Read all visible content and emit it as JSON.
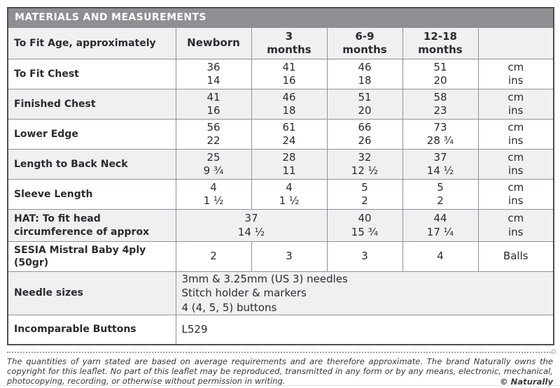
{
  "colors": {
    "title_bar_bg": "#8d8f92",
    "title_text": "#ffffff",
    "row_shade_bg": "#eff1f1",
    "outer_border": "#4d4f52",
    "grid_line": "#8f9296",
    "body_text": "#2b2b2d",
    "footer_text": "#36393c"
  },
  "title_bar": {
    "title": "MATERIALS AND MEASUREMENTS"
  },
  "table": {
    "header": {
      "label": "To Fit Age, approximately",
      "ages": [
        "Newborn",
        "3\nmonths",
        "6-9\nmonths",
        "12-18\nmonths"
      ],
      "units": ""
    },
    "rows": [
      {
        "label": "To Fit Chest",
        "values": [
          "36\n14",
          "41\n16",
          "46\n18",
          "51\n20"
        ],
        "unit": "cm\nins"
      },
      {
        "label": "Finished Chest",
        "values": [
          "41\n16",
          "46\n18",
          "51\n20",
          "58\n23"
        ],
        "unit": "cm\nins"
      },
      {
        "label": "Lower Edge",
        "values": [
          "56\n22",
          "61\n24",
          "66\n26",
          "73\n28 ¾"
        ],
        "unit": "cm\nins"
      },
      {
        "label": "Length to Back Neck",
        "values": [
          "25\n9 ¾",
          "28\n11",
          "32\n12 ½",
          "37\n14 ½"
        ],
        "unit": "cm\nins"
      },
      {
        "label": "Sleeve Length",
        "values": [
          "4\n1 ½",
          "4\n1 ½",
          "5\n2",
          "5\n2"
        ],
        "unit": "cm\nins"
      }
    ],
    "hat_row": {
      "label": "HAT: To fit head\ncircumference of approx",
      "values": [
        "37\n14 ½",
        "40\n15 ¾",
        "44\n17 ¼"
      ],
      "unit": "cm\nins"
    },
    "yarn_row": {
      "label": "SESIA Mistral Baby 4ply\n(50gr)",
      "values": [
        "2",
        "3",
        "3",
        "4"
      ],
      "unit": "Balls"
    },
    "needle_row": {
      "label": "Needle sizes",
      "details": "3mm & 3.25mm (US 3) needles\nStitch holder & markers\n4 (4, 5, 5) buttons"
    },
    "buttons_row": {
      "label": "Incomparable Buttons",
      "code": "L529"
    }
  },
  "footer": {
    "disclaimer": "The quantities of yarn stated are based on average requirements and are therefore approximate. The brand Naturally owns the copyright for this leaflet. No part of this leaflet may be reproduced, transmitted in any form or by any means, electronic, mechanical, photocopying, recording, or otherwise without permission in writing.",
    "copyright": "© Naturally"
  }
}
